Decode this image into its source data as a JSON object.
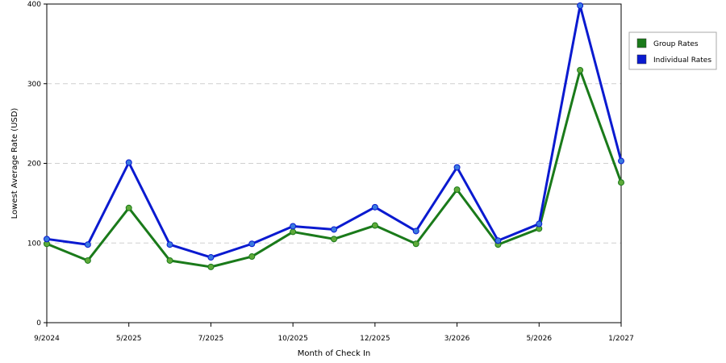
{
  "chart_data": {
    "type": "line",
    "xlabel": "Month of Check In",
    "ylabel": "Lowest Average Rate (USD)",
    "ylim": [
      0,
      400
    ],
    "y_ticks": [
      0,
      100,
      200,
      300,
      400
    ],
    "x_tick_labels": [
      "9/2024",
      "5/2025",
      "7/2025",
      "10/2025",
      "12/2025",
      "3/2026",
      "5/2026",
      "1/2027"
    ],
    "x_tick_indices": [
      0,
      2,
      4,
      6,
      8,
      10,
      12,
      14
    ],
    "num_points": 15,
    "grid": "horizontal dashed",
    "legend_position": "right",
    "series": [
      {
        "name": "Group Rates",
        "color": "#1a7a1a",
        "values": [
          99,
          78,
          144,
          78,
          70,
          83,
          114,
          105,
          122,
          99,
          167,
          98,
          118,
          317,
          176
        ]
      },
      {
        "name": "Individual Rates",
        "color": "#0a1ad0",
        "values": [
          105,
          98,
          201,
          98,
          82,
          99,
          121,
          117,
          145,
          115,
          195,
          103,
          124,
          398,
          203
        ]
      }
    ]
  }
}
